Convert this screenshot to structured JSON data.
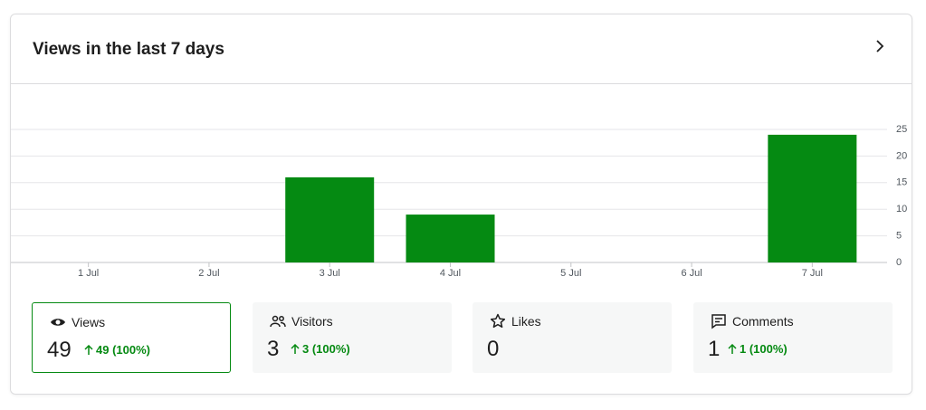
{
  "header": {
    "title": "Views in the last 7 days"
  },
  "chart_data": {
    "type": "bar",
    "categories": [
      "1 Jul",
      "2 Jul",
      "3 Jul",
      "4 Jul",
      "5 Jul",
      "6 Jul",
      "7 Jul"
    ],
    "values": [
      0,
      0,
      16,
      9,
      0,
      0,
      24
    ],
    "color": "#058a12",
    "ylim": [
      0,
      25
    ],
    "yticks": [
      0,
      5,
      10,
      15,
      20,
      25
    ],
    "grid": true
  },
  "stats": [
    {
      "label": "Views",
      "value": "49",
      "change": "49 (100%)"
    },
    {
      "label": "Visitors",
      "value": "3",
      "change": "3 (100%)"
    },
    {
      "label": "Likes",
      "value": "0"
    },
    {
      "label": "Comments",
      "value": "1",
      "change": "1 (100%)"
    }
  ]
}
